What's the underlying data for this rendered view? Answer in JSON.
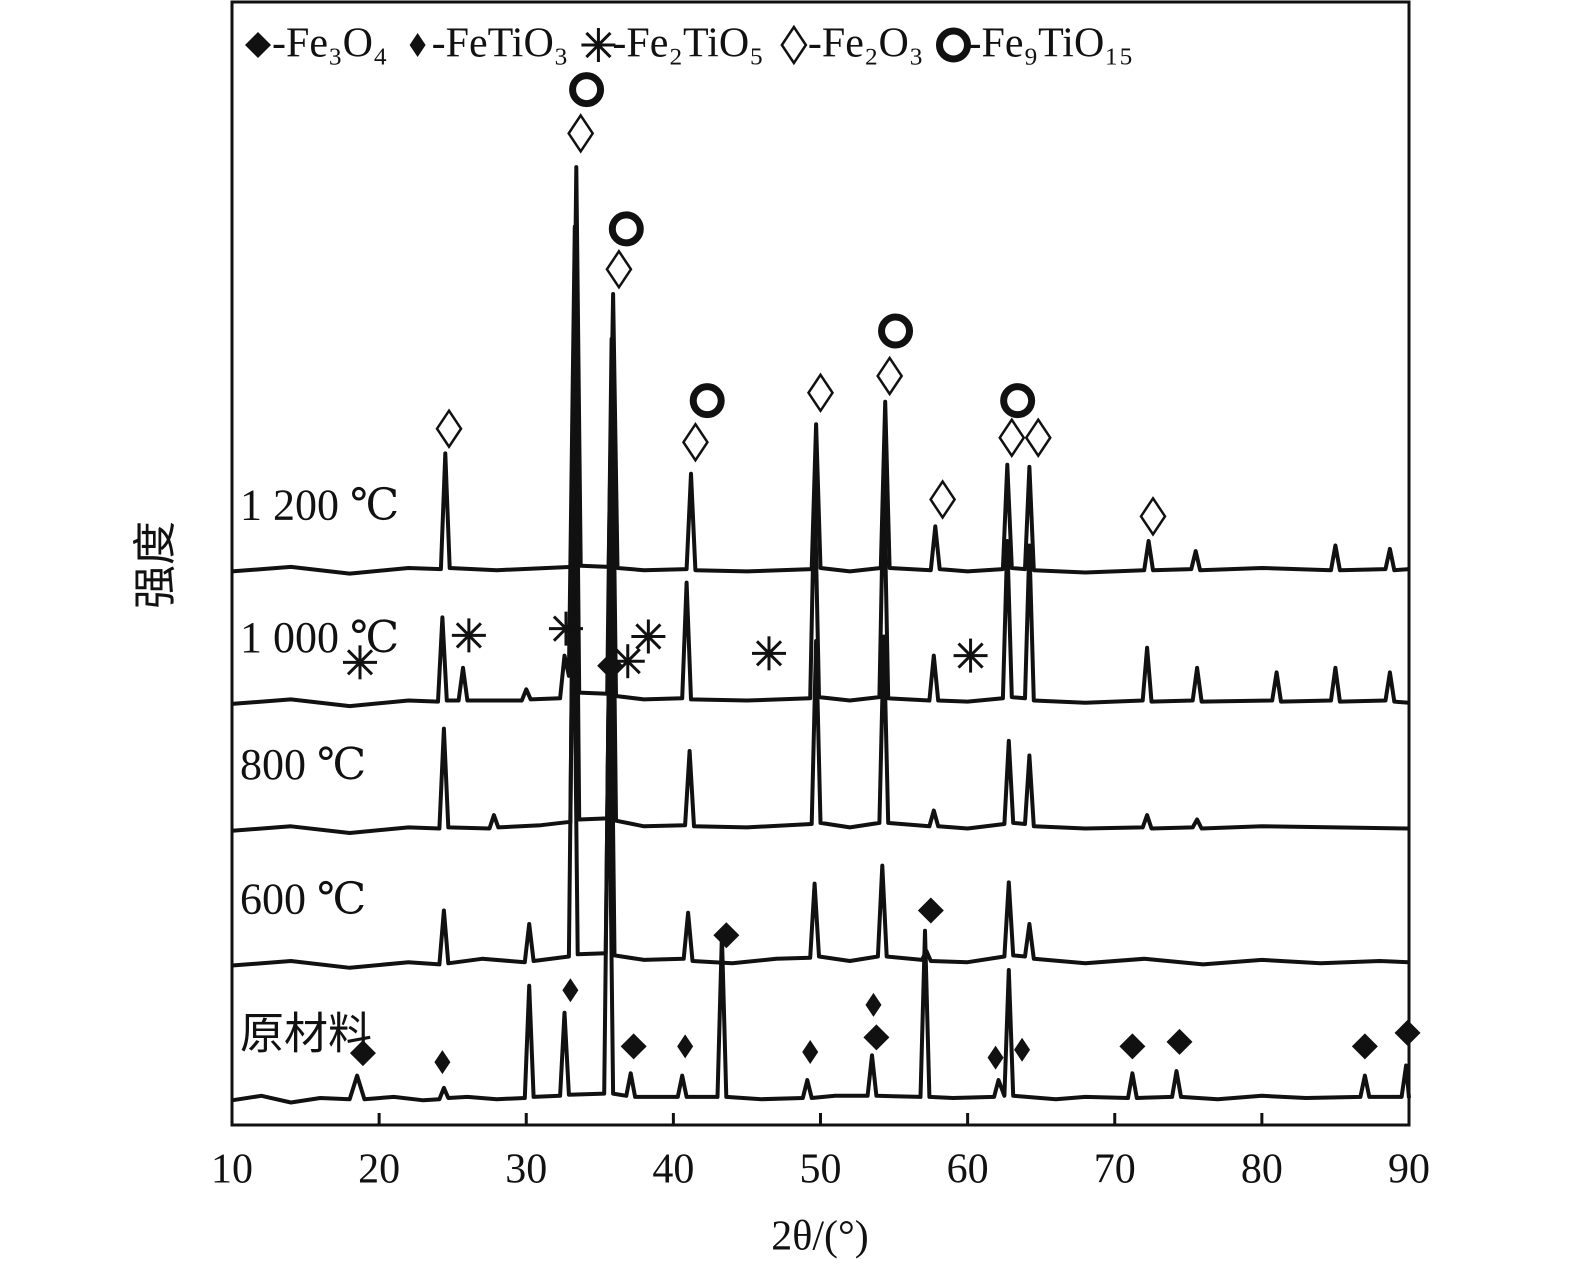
{
  "chart_data": {
    "type": "line",
    "x_label": "2θ/(°)",
    "y_label": "强度",
    "xlim": [
      10,
      90
    ],
    "xticks": [
      10,
      20,
      30,
      40,
      50,
      60,
      70,
      80,
      90
    ],
    "ylim": [
      0,
      100
    ],
    "legend": [
      "-Fe₃O₄",
      "-FeTiO₃",
      "-Fe₂TiO₅",
      "-Fe₂O₃",
      "-Fe₉TiO₁₅"
    ],
    "legend_position": "top",
    "series": [
      {
        "name": "原材料",
        "color": "#111111",
        "x": [
          10,
          12,
          14,
          16,
          18,
          18.5,
          19,
          21,
          23,
          24.1,
          24.4,
          24.7,
          26,
          28,
          29.9,
          30.2,
          30.5,
          32.3,
          32.6,
          32.9,
          35.3,
          35.6,
          35.9,
          36.8,
          37.1,
          37.4,
          40.3,
          40.6,
          40.9,
          43,
          43.3,
          43.6,
          46,
          48.8,
          49.1,
          49.4,
          51,
          53.2,
          53.5,
          53.8,
          56.8,
          57.1,
          57.4,
          59,
          61.8,
          62.1,
          62.5,
          62.8,
          63.1,
          66,
          68,
          70.9,
          71.2,
          71.5,
          73.9,
          74.2,
          74.5,
          77,
          80,
          83,
          86.7,
          87,
          87.3,
          89.5,
          89.8,
          90
        ],
        "values": [
          2.2,
          2.6,
          2.0,
          2.4,
          2.3,
          4.4,
          2.3,
          2.5,
          2.2,
          2.3,
          3.3,
          2.4,
          2.5,
          2.3,
          2.4,
          12.4,
          2.5,
          2.6,
          10,
          2.7,
          2.8,
          37.8,
          2.8,
          2.6,
          4.6,
          2.5,
          2.5,
          4.4,
          2.5,
          2.5,
          16.9,
          2.5,
          2.3,
          2.4,
          4.0,
          2.4,
          2.6,
          2.6,
          6.2,
          2.6,
          2.5,
          17.3,
          2.5,
          2.4,
          2.5,
          4.0,
          2.6,
          13.8,
          2.6,
          2.3,
          2.5,
          2.4,
          4.6,
          2.4,
          2.5,
          4.8,
          2.5,
          2.3,
          2.6,
          2.4,
          2.5,
          4.4,
          2.5,
          2.5,
          5.3,
          2.4
        ]
      },
      {
        "name": "600 ℃",
        "color": "#111111",
        "x": [
          10,
          14,
          18,
          22,
          24.1,
          24.4,
          24.7,
          27,
          29.9,
          30.2,
          30.5,
          32.9,
          33.2,
          33.5,
          35.4,
          35.7,
          36,
          38,
          40.7,
          41,
          41.3,
          44,
          47,
          49.3,
          49.6,
          49.9,
          52,
          53.9,
          54.2,
          54.5,
          56.9,
          57.2,
          57.5,
          60,
          62.5,
          62.8,
          63.1,
          63.9,
          64.2,
          64.5,
          68,
          72,
          76,
          80,
          84,
          88,
          90
        ],
        "values": [
          14.2,
          14.6,
          14.0,
          14.5,
          14.3,
          19.1,
          14.4,
          14.8,
          14.5,
          17.9,
          14.6,
          15.0,
          52,
          15.2,
          15.3,
          50,
          15.1,
          14.7,
          14.8,
          18.9,
          14.6,
          14.4,
          14.8,
          14.9,
          21.5,
          15.0,
          14.6,
          15.0,
          23.1,
          15.0,
          14.7,
          15.5,
          14.6,
          14.5,
          15.0,
          21.6,
          15.1,
          15.0,
          17.9,
          14.8,
          14.4,
          14.8,
          14.3,
          14.7,
          14.4,
          14.6,
          14.5
        ]
      },
      {
        "name": "800 ℃",
        "color": "#111111",
        "x": [
          10,
          14,
          18,
          22,
          24.1,
          24.4,
          24.7,
          27.5,
          27.8,
          28.1,
          31,
          33,
          33.3,
          33.6,
          35.5,
          35.8,
          36.1,
          38,
          40.8,
          41.1,
          41.4,
          45,
          49.4,
          49.7,
          50,
          52,
          54,
          54.3,
          54.6,
          57.4,
          57.7,
          58,
          60,
          62.5,
          62.8,
          63.1,
          63.9,
          64.2,
          64.5,
          68,
          71.9,
          72.2,
          72.5,
          75.3,
          75.6,
          75.9,
          80,
          85,
          90
        ],
        "values": [
          26.2,
          26.6,
          26.0,
          26.5,
          26.4,
          35.3,
          26.5,
          26.4,
          27.6,
          26.5,
          26.7,
          27.0,
          70,
          27.2,
          27.3,
          62,
          27.1,
          26.6,
          26.7,
          33.3,
          26.6,
          26.5,
          26.8,
          43.1,
          26.9,
          26.5,
          26.9,
          43.5,
          26.9,
          26.6,
          28.0,
          26.6,
          26.4,
          26.8,
          34.2,
          26.9,
          26.8,
          32.9,
          26.6,
          26.4,
          26.5,
          27.6,
          26.4,
          26.5,
          27.2,
          26.4,
          26.6,
          26.5,
          26.4
        ]
      },
      {
        "name": "1 000 ℃",
        "color": "#111111",
        "x": [
          10,
          14,
          18,
          22,
          24,
          24.3,
          24.6,
          25.4,
          25.7,
          26,
          29.7,
          30,
          30.3,
          32.3,
          32.6,
          32.9,
          33.3,
          33.6,
          35.5,
          35.8,
          36.1,
          38,
          40.6,
          40.9,
          41.2,
          45,
          49.3,
          49.6,
          49.9,
          52,
          54,
          54.3,
          54.6,
          57.4,
          57.7,
          58,
          60,
          62.4,
          62.7,
          63,
          63.9,
          64.2,
          64.5,
          68,
          71.9,
          72.2,
          72.5,
          75.3,
          75.6,
          75.9,
          80.7,
          81,
          81.3,
          84.7,
          85,
          85.3,
          88.4,
          88.7,
          89,
          90
        ],
        "values": [
          37.5,
          37.9,
          37.3,
          37.8,
          37.7,
          45.2,
          37.8,
          37.8,
          40.7,
          37.8,
          37.8,
          38.8,
          37.9,
          38.0,
          41.8,
          40,
          80,
          38.5,
          38.4,
          70,
          38.2,
          37.9,
          38.0,
          48.3,
          37.9,
          37.8,
          38.0,
          57,
          38.1,
          37.8,
          38.1,
          58,
          38.0,
          37.8,
          41.8,
          37.8,
          37.7,
          38.0,
          52.0,
          38.1,
          38.0,
          51.6,
          37.8,
          37.6,
          37.8,
          42.5,
          37.7,
          37.8,
          40.7,
          37.7,
          37.8,
          40.3,
          37.7,
          37.8,
          40.7,
          37.7,
          37.8,
          40.3,
          37.7,
          37.6
        ]
      },
      {
        "name": "1 200 ℃",
        "color": "#111111",
        "x": [
          10,
          14,
          18,
          22,
          24.2,
          24.5,
          24.8,
          28,
          33.1,
          33.4,
          33.7,
          35.6,
          35.9,
          36.2,
          38,
          40.9,
          41.2,
          41.5,
          45,
          49.4,
          49.7,
          50,
          52,
          54.1,
          54.4,
          54.7,
          57.5,
          57.8,
          58.1,
          60,
          62.4,
          62.7,
          63,
          63.9,
          64.2,
          64.5,
          68,
          72,
          72.3,
          72.6,
          75.2,
          75.5,
          75.8,
          80,
          84.7,
          85,
          85.3,
          88.4,
          88.7,
          89,
          90
        ],
        "values": [
          49.3,
          49.7,
          49.1,
          49.6,
          49.5,
          59.8,
          49.6,
          49.4,
          49.7,
          85.3,
          49.8,
          49.7,
          74.0,
          49.6,
          49.4,
          49.5,
          58.0,
          49.4,
          49.3,
          49.5,
          62.4,
          49.6,
          49.3,
          49.6,
          64.4,
          49.6,
          49.4,
          53.3,
          49.5,
          49.3,
          49.5,
          58.8,
          49.6,
          49.5,
          58.6,
          49.4,
          49.2,
          49.4,
          52.0,
          49.4,
          49.5,
          51.1,
          49.4,
          49.6,
          49.4,
          51.6,
          49.4,
          49.5,
          51.3,
          49.4,
          49.5
        ]
      }
    ],
    "markers": [
      {
        "phase": 3,
        "x": 24.75,
        "y": 62.0
      },
      {
        "phase": 4,
        "x": 34.1,
        "y": 92.2
      },
      {
        "phase": 3,
        "x": 33.7,
        "y": 88.3
      },
      {
        "phase": 4,
        "x": 36.8,
        "y": 79.8
      },
      {
        "phase": 3,
        "x": 36.3,
        "y": 76.2
      },
      {
        "phase": 4,
        "x": 42.3,
        "y": 64.5
      },
      {
        "phase": 3,
        "x": 41.5,
        "y": 60.8
      },
      {
        "phase": 3,
        "x": 50.0,
        "y": 65.2
      },
      {
        "phase": 4,
        "x": 55.1,
        "y": 70.7
      },
      {
        "phase": 3,
        "x": 54.7,
        "y": 66.7
      },
      {
        "phase": 4,
        "x": 63.4,
        "y": 64.5
      },
      {
        "phase": 3,
        "x": 63.0,
        "y": 61.2
      },
      {
        "phase": 3,
        "x": 64.8,
        "y": 61.2
      },
      {
        "phase": 3,
        "x": 58.3,
        "y": 55.7
      },
      {
        "phase": 3,
        "x": 72.6,
        "y": 54.2
      },
      {
        "phase": 2,
        "x": 18.7,
        "y": 41.2
      },
      {
        "phase": 2,
        "x": 26.1,
        "y": 43.6
      },
      {
        "phase": 2,
        "x": 32.7,
        "y": 44.2
      },
      {
        "phase": 2,
        "x": 38.3,
        "y": 43.5
      },
      {
        "phase": 2,
        "x": 36.9,
        "y": 41.3
      },
      {
        "phase": 2,
        "x": 46.5,
        "y": 42.0
      },
      {
        "phase": 2,
        "x": 60.2,
        "y": 41.8
      },
      {
        "phase": 0,
        "x": 35.7,
        "y": 40.9
      },
      {
        "phase": 0,
        "x": 57.5,
        "y": 19.1
      },
      {
        "phase": 0,
        "x": 43.6,
        "y": 16.9
      },
      {
        "phase": 0,
        "x": 18.9,
        "y": 6.4
      },
      {
        "phase": 1,
        "x": 24.3,
        "y": 5.6
      },
      {
        "phase": 1,
        "x": 33.0,
        "y": 12.0
      },
      {
        "phase": 0,
        "x": 37.3,
        "y": 7.0
      },
      {
        "phase": 1,
        "x": 40.8,
        "y": 7.0
      },
      {
        "phase": 1,
        "x": 49.3,
        "y": 6.5
      },
      {
        "phase": 1,
        "x": 53.6,
        "y": 10.7
      },
      {
        "phase": 0,
        "x": 53.8,
        "y": 7.8
      },
      {
        "phase": 1,
        "x": 61.9,
        "y": 6.0
      },
      {
        "phase": 1,
        "x": 63.7,
        "y": 6.7
      },
      {
        "phase": 0,
        "x": 71.2,
        "y": 7.0
      },
      {
        "phase": 0,
        "x": 74.4,
        "y": 7.4
      },
      {
        "phase": 0,
        "x": 87.0,
        "y": 7.0
      },
      {
        "phase": 0,
        "x": 89.9,
        "y": 8.2
      }
    ]
  }
}
